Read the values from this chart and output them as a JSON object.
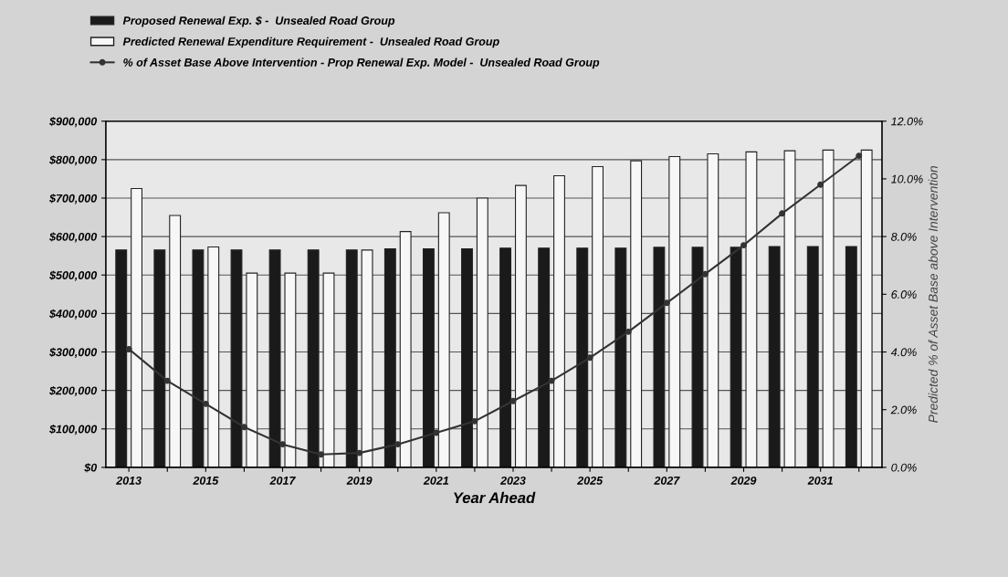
{
  "chart_data": {
    "type": "bar",
    "xlabel": "Year Ahead",
    "y2label": "Predicted % of Asset Base above Intervention",
    "categories": [
      "2013",
      null,
      "2015",
      null,
      "2017",
      null,
      "2019",
      null,
      "2021",
      null,
      "2023",
      null,
      "2025",
      null,
      "2027",
      null,
      "2029",
      null,
      "2031",
      null
    ],
    "series": [
      {
        "name": "Proposed Renewal Exp. $ -  Unsealed Road Group",
        "color": "#1a1a1a",
        "values": [
          565000,
          565000,
          565000,
          565000,
          565000,
          565000,
          565000,
          568000,
          568000,
          568000,
          570000,
          570000,
          570000,
          570000,
          572000,
          572000,
          572000,
          574000,
          574000,
          574000
        ]
      },
      {
        "name": "Predicted Renewal Expenditure Requirement -  Unsealed Road Group",
        "color": "#f7f7f7",
        "values": [
          725000,
          655000,
          573000,
          505000,
          505000,
          505000,
          565000,
          613000,
          662000,
          700000,
          733000,
          758000,
          782000,
          797000,
          808000,
          815000,
          820000,
          823000,
          825000,
          825000
        ]
      },
      {
        "name": "% of Asset Base Above Intervention - Prop Renewal Exp. Model -  Unsealed Road Group",
        "type": "line",
        "axis": "y2",
        "color": "#333333",
        "marker": "circle",
        "values": [
          4.1,
          3.0,
          2.2,
          1.4,
          0.8,
          0.45,
          0.5,
          0.8,
          1.2,
          1.6,
          2.3,
          3.0,
          3.8,
          4.7,
          5.7,
          6.7,
          7.7,
          8.8,
          9.8,
          10.8
        ]
      }
    ],
    "ylim": [
      0,
      900000
    ],
    "yticks": [
      {
        "value": 0,
        "label": "$0"
      },
      {
        "value": 100000,
        "label": "$100,000"
      },
      {
        "value": 200000,
        "label": "$200,000"
      },
      {
        "value": 300000,
        "label": "$300,000"
      },
      {
        "value": 400000,
        "label": "$400,000"
      },
      {
        "value": 500000,
        "label": "$500,000"
      },
      {
        "value": 600000,
        "label": "$600,000"
      },
      {
        "value": 700000,
        "label": "$700,000"
      },
      {
        "value": 800000,
        "label": "$800,000"
      },
      {
        "value": 900000,
        "label": "$900,000"
      }
    ],
    "y2lim": [
      0,
      12
    ],
    "y2ticks": [
      {
        "value": 0,
        "label": "0.0%"
      },
      {
        "value": 2,
        "label": "2.0%"
      },
      {
        "value": 4,
        "label": "4.0%"
      },
      {
        "value": 6,
        "label": "6.0%"
      },
      {
        "value": 8,
        "label": "8.0%"
      },
      {
        "value": 10,
        "label": "10.0%"
      },
      {
        "value": 12,
        "label": "12.0%"
      }
    ],
    "grid": "y",
    "legend": "top left"
  }
}
